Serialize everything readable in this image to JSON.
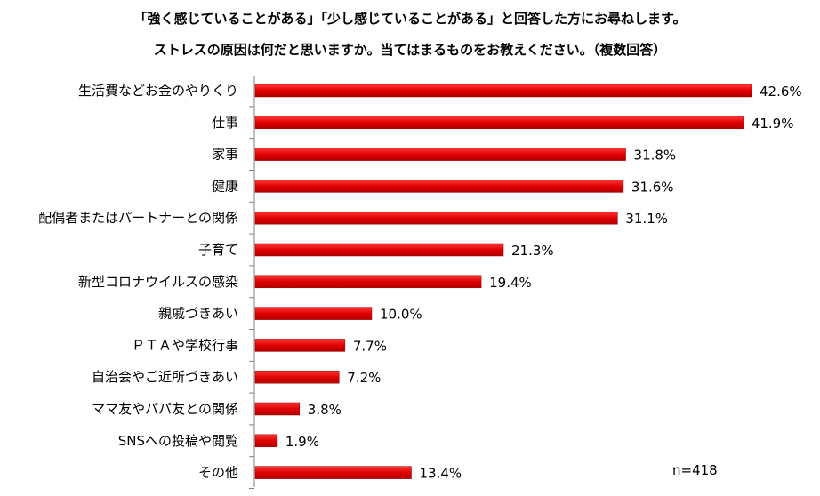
{
  "chart_data": {
    "type": "bar",
    "orientation": "horizontal",
    "title": "「強く感じていることがある」「少し感じていることがある」と回答した方にお尋ねします。",
    "subtitle": "ストレスの原因は何だと思いますか。当てはまるものをお教えください。（複数回答）",
    "categories": [
      "生活費などお金のやりくり",
      "仕事",
      "家事",
      "健康",
      "配偶者またはパートナーとの関係",
      "子育て",
      "新型コロナウイルスの感染",
      "親戚づきあい",
      "ＰＴＡや学校行事",
      "自治会やご近所づきあい",
      "ママ友やパパ友との関係",
      "SNSへの投稿や閲覧",
      "その他"
    ],
    "values": [
      42.6,
      41.9,
      31.8,
      31.6,
      31.1,
      21.3,
      19.4,
      10.0,
      7.7,
      7.2,
      3.8,
      1.9,
      13.4
    ],
    "value_labels": [
      "42.6%",
      "41.9%",
      "31.8%",
      "31.6%",
      "31.1%",
      "21.3%",
      "19.4%",
      "10.0%",
      "7.7%",
      "7.2%",
      "3.8%",
      "1.9%",
      "13.4%"
    ],
    "xlim": [
      0,
      50
    ],
    "bar_color": "#e00000",
    "grid": false,
    "note": "n=418"
  }
}
